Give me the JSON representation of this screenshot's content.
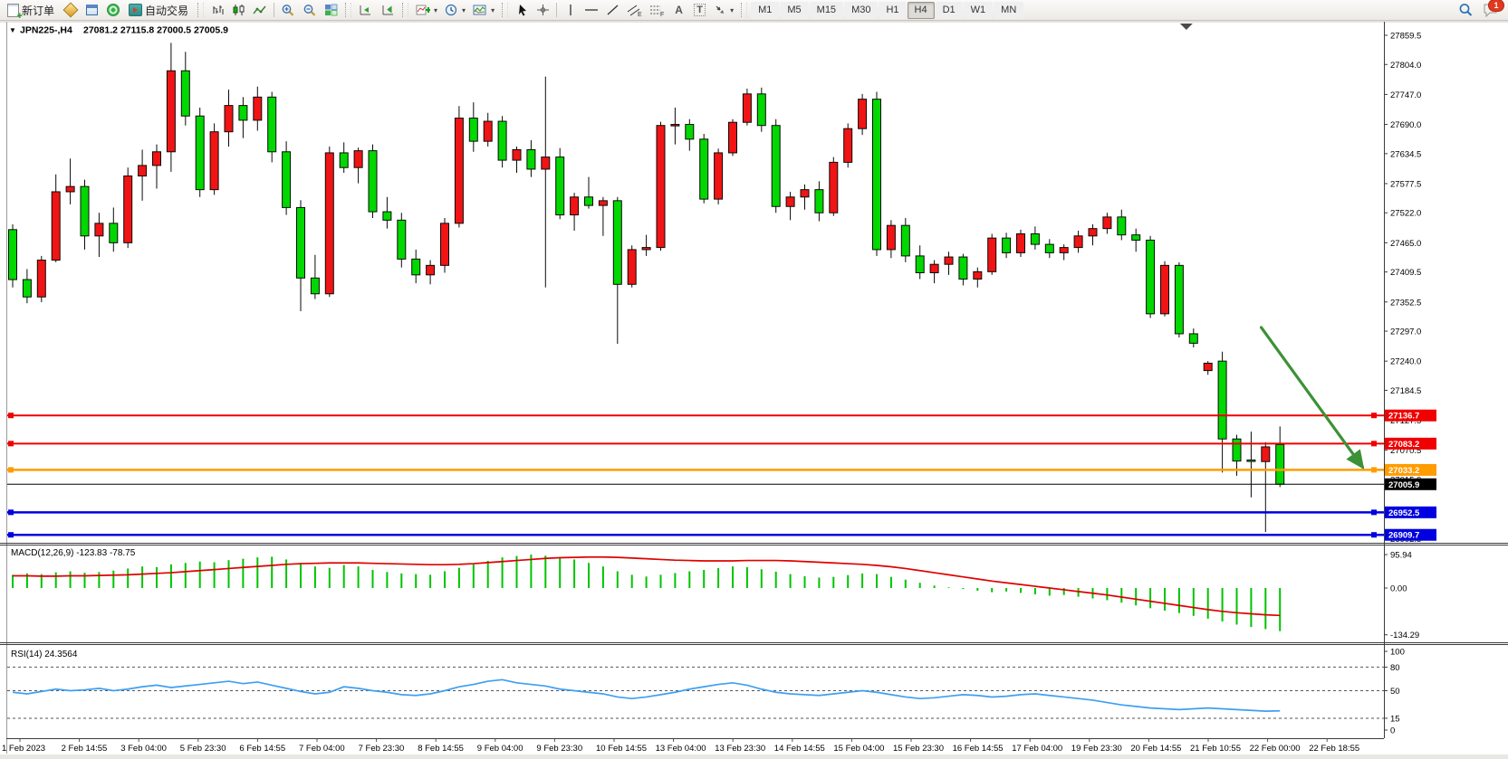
{
  "glyphs": {
    "caret": "▾",
    "collapse_arrow": "▼",
    "text_tool": "A",
    "label_tool": "T",
    "channel_suffix": "E",
    "fibo_suffix": "F"
  },
  "toolbar": {
    "new_order": "新订单",
    "auto_trading": "自动交易",
    "timeframes": [
      "M1",
      "M5",
      "M15",
      "M30",
      "H1",
      "H4",
      "D1",
      "W1",
      "MN"
    ],
    "active_timeframe": "H4",
    "notification_badge": "1"
  },
  "header": {
    "symbol_period": "JPN225-,H4",
    "ohlc": "27081.2 27115.8 27000.5 27005.9"
  },
  "price_axis": {
    "ticks": [
      "27859.5",
      "27804.0",
      "27747.0",
      "27690.0",
      "27634.5",
      "27577.5",
      "27522.0",
      "27465.0",
      "27409.5",
      "27352.5",
      "27297.0",
      "27240.0",
      "27184.5",
      "27127.5",
      "27070.5",
      "27015.0",
      "26958.0",
      "26902.5"
    ]
  },
  "time_axis": {
    "labels": [
      "1 Feb 2023",
      "2 Feb 14:55",
      "3 Feb 04:00",
      "5 Feb 23:30",
      "6 Feb 14:55",
      "7 Feb 04:00",
      "7 Feb 23:30",
      "8 Feb 14:55",
      "9 Feb 04:00",
      "9 Feb 23:30",
      "10 Feb 14:55",
      "13 Feb 04:00",
      "13 Feb 23:30",
      "14 Feb 14:55",
      "15 Feb 04:00",
      "15 Feb 23:30",
      "16 Feb 14:55",
      "17 Feb 04:00",
      "19 Feb 23:30",
      "20 Feb 14:55",
      "21 Feb 10:55",
      "22 Feb 00:00",
      "22 Feb 18:55"
    ]
  },
  "indicators": {
    "macd": {
      "label": "MACD(12,26,9) -123.83 -78.75",
      "axis": [
        "95.94",
        "0.00",
        "-134.29"
      ]
    },
    "rsi": {
      "label": "RSI(14) 24.3564",
      "axis": [
        "100",
        "80",
        "50",
        "15",
        "0"
      ],
      "levels": [
        80,
        50,
        15
      ]
    }
  },
  "chart_data": {
    "type": "candlestick",
    "symbol": "JPN225-",
    "period": "H4",
    "current_bar": {
      "open": 27081.2,
      "high": 27115.8,
      "low": 27000.5,
      "close": 27005.9
    },
    "up_color": "#f01414",
    "down_color": "#00d800",
    "wick_color": "#0a0a0a",
    "shift_marker_bar": 81.5,
    "candles": [
      [
        27490,
        27500,
        27380,
        27395
      ],
      [
        27395,
        27415,
        27350,
        27362
      ],
      [
        27362,
        27440,
        27352,
        27432
      ],
      [
        27432,
        27595,
        27428,
        27562
      ],
      [
        27562,
        27625,
        27538,
        27572
      ],
      [
        27572,
        27585,
        27452,
        27478
      ],
      [
        27478,
        27522,
        27438,
        27502
      ],
      [
        27502,
        27532,
        27448,
        27465
      ],
      [
        27465,
        27608,
        27455,
        27592
      ],
      [
        27592,
        27642,
        27545,
        27612
      ],
      [
        27612,
        27652,
        27568,
        27638
      ],
      [
        27638,
        27845,
        27600,
        27792
      ],
      [
        27792,
        27828,
        27688,
        27706
      ],
      [
        27706,
        27722,
        27552,
        27566
      ],
      [
        27566,
        27692,
        27556,
        27676
      ],
      [
        27676,
        27756,
        27648,
        27726
      ],
      [
        27726,
        27742,
        27664,
        27698
      ],
      [
        27698,
        27762,
        27678,
        27742
      ],
      [
        27742,
        27752,
        27618,
        27638
      ],
      [
        27638,
        27658,
        27518,
        27532
      ],
      [
        27532,
        27546,
        27335,
        27398
      ],
      [
        27398,
        27442,
        27358,
        27368
      ],
      [
        27368,
        27648,
        27362,
        27636
      ],
      [
        27636,
        27656,
        27598,
        27608
      ],
      [
        27608,
        27646,
        27578,
        27640
      ],
      [
        27640,
        27652,
        27512,
        27524
      ],
      [
        27524,
        27552,
        27492,
        27508
      ],
      [
        27508,
        27522,
        27418,
        27434
      ],
      [
        27434,
        27452,
        27388,
        27404
      ],
      [
        27404,
        27432,
        27386,
        27422
      ],
      [
        27422,
        27512,
        27408,
        27502
      ],
      [
        27502,
        27725,
        27494,
        27702
      ],
      [
        27702,
        27732,
        27638,
        27658
      ],
      [
        27658,
        27712,
        27648,
        27696
      ],
      [
        27696,
        27706,
        27608,
        27622
      ],
      [
        27622,
        27648,
        27598,
        27642
      ],
      [
        27642,
        27660,
        27590,
        27605
      ],
      [
        27605,
        27781,
        27380,
        27628
      ],
      [
        27628,
        27645,
        27510,
        27518
      ],
      [
        27518,
        27560,
        27488,
        27552
      ],
      [
        27552,
        27590,
        27530,
        27536
      ],
      [
        27536,
        27552,
        27478,
        27545
      ],
      [
        27545,
        27552,
        27273,
        27386
      ],
      [
        27386,
        27460,
        27380,
        27452
      ],
      [
        27452,
        27480,
        27440,
        27456
      ],
      [
        27456,
        27695,
        27450,
        27688
      ],
      [
        27688,
        27722,
        27652,
        27690
      ],
      [
        27690,
        27700,
        27640,
        27662
      ],
      [
        27662,
        27672,
        27540,
        27548
      ],
      [
        27548,
        27644,
        27538,
        27636
      ],
      [
        27636,
        27700,
        27630,
        27694
      ],
      [
        27694,
        27758,
        27688,
        27748
      ],
      [
        27748,
        27760,
        27676,
        27688
      ],
      [
        27688,
        27700,
        27522,
        27534
      ],
      [
        27534,
        27562,
        27508,
        27552
      ],
      [
        27552,
        27576,
        27528,
        27566
      ],
      [
        27566,
        27582,
        27506,
        27522
      ],
      [
        27522,
        27628,
        27516,
        27618
      ],
      [
        27618,
        27692,
        27608,
        27682
      ],
      [
        27682,
        27748,
        27670,
        27738
      ],
      [
        27738,
        27752,
        27440,
        27452
      ],
      [
        27452,
        27508,
        27436,
        27498
      ],
      [
        27498,
        27512,
        27428,
        27440
      ],
      [
        27440,
        27460,
        27396,
        27408
      ],
      [
        27408,
        27432,
        27388,
        27424
      ],
      [
        27424,
        27448,
        27404,
        27438
      ],
      [
        27438,
        27444,
        27384,
        27396
      ],
      [
        27396,
        27418,
        27380,
        27410
      ],
      [
        27410,
        27482,
        27404,
        27474
      ],
      [
        27474,
        27484,
        27436,
        27446
      ],
      [
        27446,
        27490,
        27438,
        27482
      ],
      [
        27482,
        27496,
        27452,
        27462
      ],
      [
        27462,
        27472,
        27436,
        27446
      ],
      [
        27446,
        27462,
        27432,
        27456
      ],
      [
        27456,
        27488,
        27446,
        27478
      ],
      [
        27478,
        27500,
        27460,
        27492
      ],
      [
        27492,
        27522,
        27482,
        27514
      ],
      [
        27514,
        27528,
        27470,
        27480
      ],
      [
        27480,
        27492,
        27448,
        27470
      ],
      [
        27470,
        27478,
        27322,
        27330
      ],
      [
        27330,
        27430,
        27325,
        27422
      ],
      [
        27422,
        27428,
        27285,
        27292
      ],
      [
        27292,
        27302,
        27266,
        27274
      ],
      [
        27222,
        27240,
        27214,
        27236
      ],
      [
        27240,
        27258,
        27028,
        27092
      ],
      [
        27092,
        27100,
        27022,
        27050
      ],
      [
        27052,
        27106,
        26981,
        27050
      ],
      [
        27049,
        27086,
        26915,
        27077
      ],
      [
        27081.2,
        27115.8,
        27000.5,
        27005.9
      ]
    ],
    "hlines": [
      {
        "price": 27136.7,
        "color": "#f00000",
        "width": 2,
        "handles": true
      },
      {
        "price": 27083.2,
        "color": "#f00000",
        "width": 2,
        "handles": true
      },
      {
        "price": 27033.2,
        "color": "#ff9c00",
        "width": 2.5,
        "handles": true
      },
      {
        "price": 27005.9,
        "color": "#000000",
        "width": 1,
        "handles": false
      },
      {
        "price": 26952.5,
        "color": "#0000e0",
        "width": 2.5,
        "handles": true
      },
      {
        "price": 26909.7,
        "color": "#0000e0",
        "width": 2.5,
        "handles": true
      }
    ],
    "trend_arrow": {
      "color": "#3c9136",
      "from": {
        "bar": 86.7,
        "price": 27304
      },
      "to": {
        "bar": 94.3,
        "price": 27018
      }
    },
    "macd": {
      "bar_color": "#00c400",
      "signal_color": "#e00000",
      "histogram": [
        38,
        42,
        40,
        45,
        48,
        44,
        46,
        50,
        56,
        62,
        60,
        68,
        72,
        76,
        74,
        80,
        84,
        88,
        90,
        82,
        72,
        62,
        58,
        66,
        62,
        52,
        46,
        42,
        40,
        38,
        48,
        58,
        68,
        78,
        88,
        92,
        96,
        93,
        89,
        82,
        72,
        62,
        48,
        38,
        33,
        38,
        43,
        48,
        52,
        57,
        62,
        60,
        54,
        47,
        40,
        34,
        30,
        32,
        37,
        42,
        40,
        32,
        24,
        15,
        7,
        2,
        -3,
        -8,
        -12,
        -10,
        -14,
        -18,
        -22,
        -20,
        -25,
        -30,
        -35,
        -42,
        -50,
        -58,
        -65,
        -72,
        -80,
        -88,
        -96,
        -105,
        -112,
        -118,
        -123.8
      ],
      "signal": [
        35,
        35,
        34,
        34,
        35,
        35,
        36,
        37,
        38,
        40,
        42,
        44,
        47,
        50,
        53,
        56,
        59,
        62,
        65,
        68,
        70,
        71,
        72,
        72,
        72,
        71,
        70,
        69,
        68,
        67,
        67,
        68,
        70,
        73,
        76,
        79,
        82,
        85,
        87,
        88,
        89,
        89,
        88,
        86,
        84,
        82,
        80,
        79,
        78,
        78,
        78,
        79,
        79,
        79,
        78,
        76,
        74,
        72,
        70,
        68,
        65,
        61,
        56,
        50,
        44,
        38,
        32,
        26,
        20,
        15,
        10,
        5,
        0,
        -5,
        -10,
        -15,
        -20,
        -26,
        -32,
        -38,
        -44,
        -50,
        -56,
        -62,
        -67,
        -71,
        -74,
        -77,
        -78.8
      ]
    },
    "rsi": {
      "line_color": "#3e9ff2",
      "values": [
        48,
        46,
        49,
        52,
        50,
        51,
        53,
        50,
        52,
        55,
        57,
        54,
        56,
        58,
        60,
        62,
        59,
        61,
        57,
        53,
        49,
        46,
        48,
        55,
        53,
        50,
        48,
        45,
        44,
        46,
        50,
        55,
        58,
        62,
        64,
        60,
        58,
        56,
        52,
        50,
        48,
        46,
        42,
        40,
        42,
        45,
        48,
        52,
        55,
        58,
        60,
        57,
        52,
        48,
        46,
        45,
        44,
        46,
        48,
        50,
        48,
        45,
        42,
        40,
        41,
        43,
        45,
        44,
        42,
        43,
        45,
        46,
        44,
        42,
        40,
        38,
        35,
        32,
        30,
        28,
        27,
        26,
        27,
        28,
        27,
        26,
        25,
        24,
        24.4
      ]
    }
  }
}
